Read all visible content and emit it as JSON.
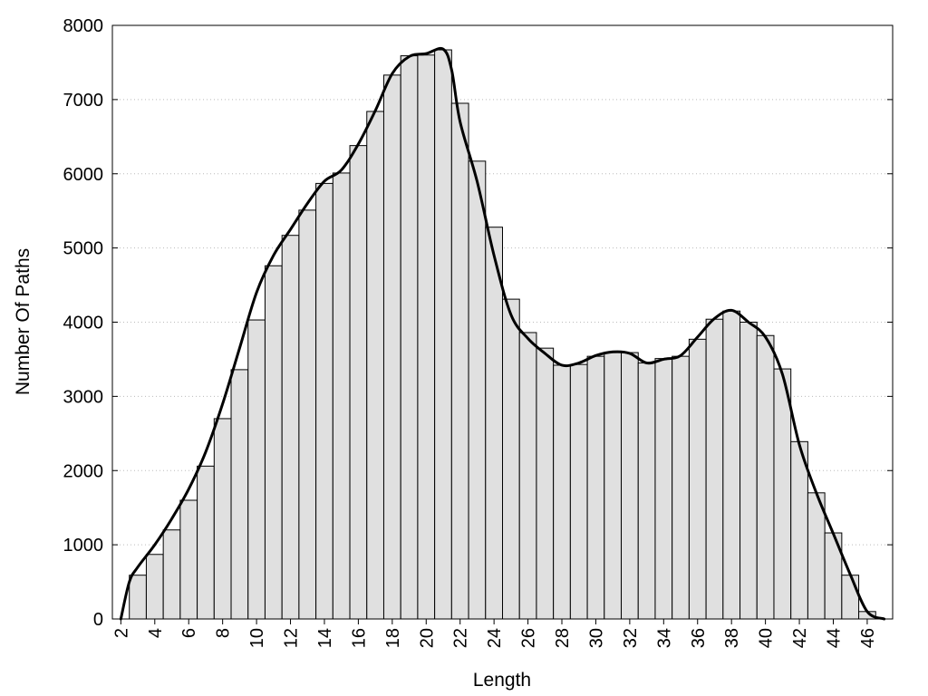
{
  "chart_data": {
    "type": "bar",
    "title": "",
    "xlabel": "Length",
    "ylabel": "Number Of Paths",
    "xlim": [
      1.5,
      47.5
    ],
    "ylim": [
      0,
      8000
    ],
    "x": [
      3,
      4,
      5,
      6,
      7,
      8,
      9,
      10,
      11,
      12,
      13,
      14,
      15,
      16,
      17,
      18,
      19,
      20,
      21,
      22,
      23,
      24,
      25,
      26,
      27,
      28,
      29,
      30,
      31,
      32,
      33,
      34,
      35,
      36,
      37,
      38,
      39,
      40,
      41,
      42,
      43,
      44,
      45,
      46,
      47
    ],
    "values": [
      590,
      870,
      1200,
      1600,
      2060,
      2700,
      3360,
      4030,
      4760,
      5170,
      5510,
      5870,
      6010,
      6380,
      6840,
      7330,
      7590,
      7600,
      7670,
      6950,
      6170,
      5280,
      4310,
      3860,
      3650,
      3420,
      3430,
      3540,
      3590,
      3590,
      3450,
      3510,
      3540,
      3770,
      4040,
      4150,
      4000,
      3820,
      3370,
      2390,
      1700,
      1160,
      590,
      100,
      0
    ],
    "curve": {
      "x": [
        2,
        2.5,
        3,
        4,
        5,
        6,
        7,
        8,
        9,
        10,
        11,
        12,
        13,
        14,
        15,
        16,
        17,
        18,
        19,
        20,
        21,
        21.5,
        22,
        23,
        24,
        25,
        26,
        27,
        28,
        29,
        30,
        31,
        32,
        33,
        34,
        35,
        36,
        37,
        38,
        39,
        40,
        41,
        42,
        43,
        44,
        45,
        46,
        47
      ],
      "y": [
        0,
        500,
        700,
        1000,
        1350,
        1750,
        2250,
        2900,
        3650,
        4400,
        4900,
        5250,
        5600,
        5900,
        6050,
        6400,
        6850,
        7350,
        7580,
        7620,
        7680,
        7400,
        6700,
        5900,
        4900,
        4100,
        3780,
        3580,
        3420,
        3450,
        3550,
        3600,
        3580,
        3450,
        3500,
        3550,
        3800,
        4050,
        4160,
        4000,
        3800,
        3300,
        2350,
        1700,
        1150,
        600,
        100,
        0
      ]
    },
    "xticks": [
      2,
      4,
      6,
      8,
      10,
      12,
      14,
      16,
      18,
      20,
      22,
      24,
      26,
      28,
      30,
      32,
      34,
      36,
      38,
      40,
      42,
      44,
      46
    ],
    "xtick_labels": [
      "2",
      "4",
      "6",
      "8",
      "10",
      "12",
      "14",
      "16",
      "18",
      "20",
      "22",
      "24",
      "26",
      "28",
      "30",
      "32",
      "34",
      "36",
      "38",
      "40",
      "42",
      "44",
      "46"
    ],
    "yticks": [
      0,
      1000,
      2000,
      3000,
      4000,
      5000,
      6000,
      7000,
      8000
    ],
    "ytick_labels": [
      "0",
      "1000",
      "2000",
      "3000",
      "4000",
      "5000",
      "6000",
      "7000",
      "8000"
    ],
    "grid": "y-dotted",
    "legend": "none",
    "colors": {
      "bar_fill": "#e0e0e0",
      "bar_stroke": "#000000",
      "curve": "#000000",
      "grid": "#bbbbbb",
      "axis": "#000000"
    }
  }
}
